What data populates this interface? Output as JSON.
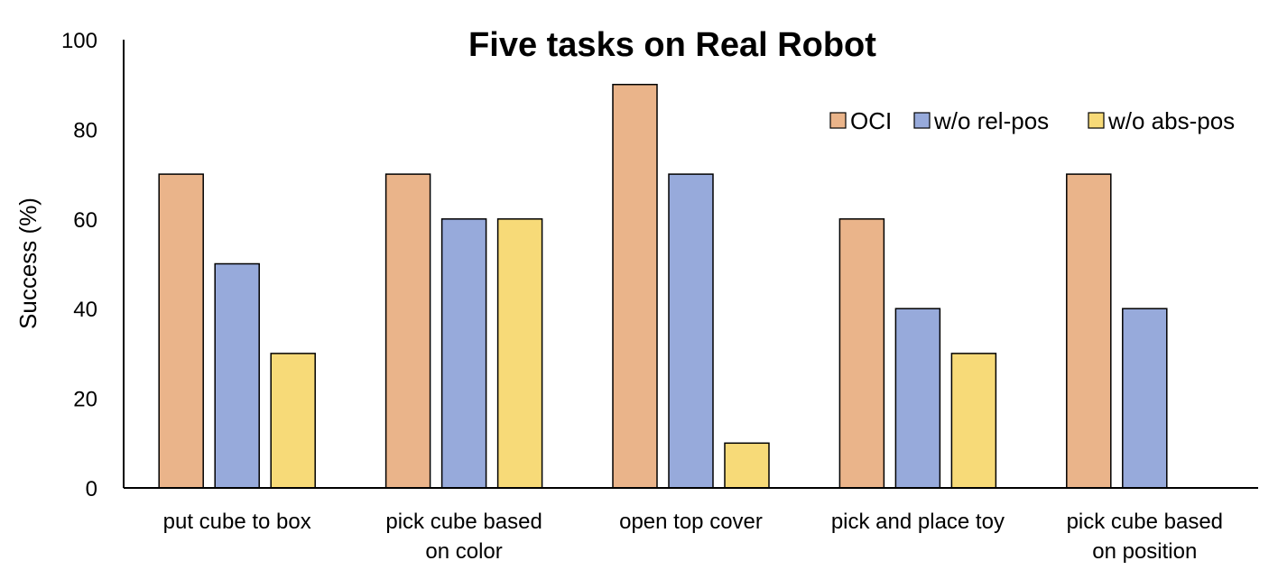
{
  "chart_data": {
    "type": "bar",
    "title": "Five tasks on Real Robot",
    "xlabel": "",
    "ylabel": "Success (%)",
    "ylim": [
      0,
      100
    ],
    "yticks": [
      "0",
      "20",
      "40",
      "60",
      "80",
      "100"
    ],
    "grid": false,
    "legend_position": "top-right",
    "categories": [
      [
        "put cube to box"
      ],
      [
        "pick cube based",
        "on color"
      ],
      [
        "open top cover"
      ],
      [
        "pick and place toy"
      ],
      [
        "pick cube based",
        "on position"
      ]
    ],
    "series": [
      {
        "name": "OCI",
        "color": "#EAB48A",
        "values": [
          70,
          70,
          90,
          60,
          70
        ]
      },
      {
        "name": "w/o rel-pos",
        "color": "#97AADB",
        "values": [
          50,
          60,
          70,
          40,
          40
        ]
      },
      {
        "name": "w/o abs-pos",
        "color": "#F7DA78",
        "values": [
          30,
          60,
          10,
          30,
          0
        ]
      }
    ]
  }
}
